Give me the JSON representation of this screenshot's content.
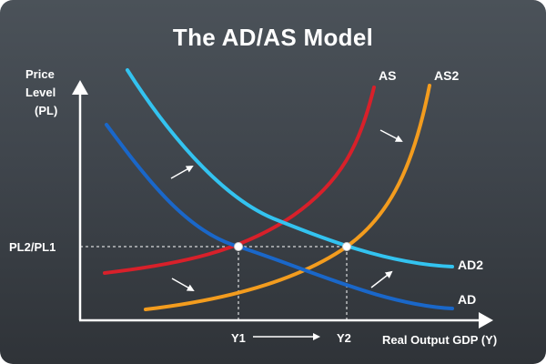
{
  "title": "The AD/AS Model",
  "y_axis_label": [
    "Price",
    "Level",
    "(PL)"
  ],
  "x_axis_label": "Real Output GDP (Y)",
  "price_level_label": "PL2/PL1",
  "output_labels": {
    "y1": "Y1",
    "y2": "Y2"
  },
  "curves": {
    "as": {
      "label": "AS",
      "color": "#d8202a"
    },
    "as2": {
      "label": "AS2",
      "color": "#f39c1e"
    },
    "ad": {
      "label": "AD",
      "color": "#1a67c9"
    },
    "ad2": {
      "label": "AD2",
      "color": "#33c3f0"
    }
  },
  "colors": {
    "background": "#454b52",
    "axis": "#ffffff",
    "equilibrium_point": "#ffffff"
  }
}
